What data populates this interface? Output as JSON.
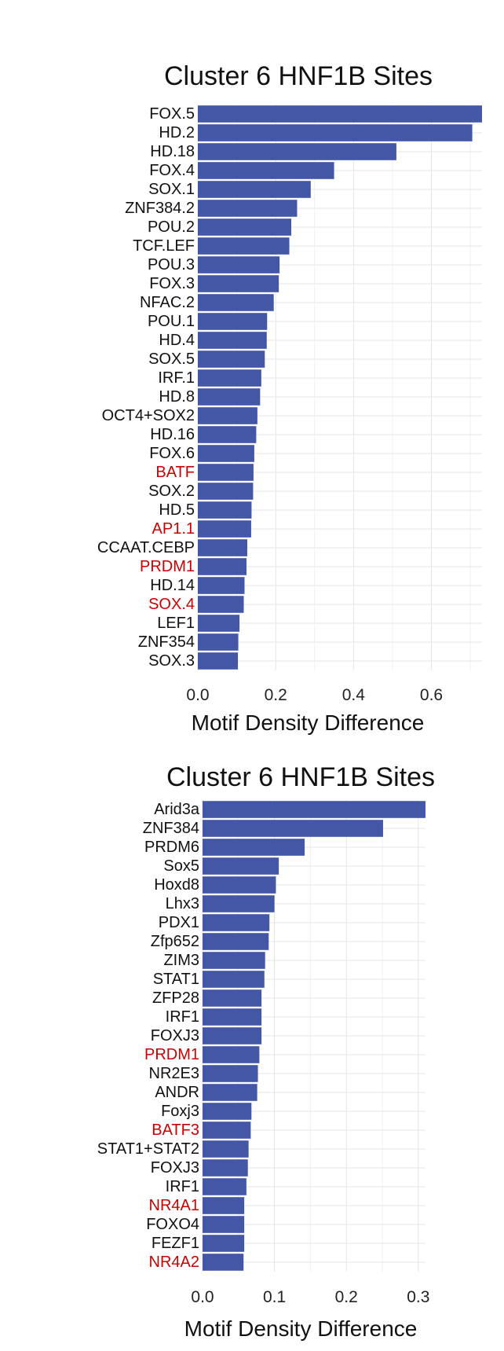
{
  "chart_data": [
    {
      "type": "bar",
      "orientation": "horizontal",
      "title": "Cluster 6 HNF1B Sites",
      "xlabel": "Motif Density Difference",
      "ylabel": "",
      "xlim": [
        0,
        0.73
      ],
      "xticks": [
        "0.0",
        "0.2",
        "0.4",
        "0.6"
      ],
      "xtick_values": [
        0.0,
        0.2,
        0.4,
        0.6
      ],
      "bar_color": "#4357a6",
      "highlight_color": "#cc0000",
      "grid": true,
      "categories": [
        "FOX.5",
        "HD.2",
        "HD.18",
        "FOX.4",
        "SOX.1",
        "ZNF384.2",
        "POU.2",
        "TCF.LEF",
        "POU.3",
        "FOX.3",
        "NFAC.2",
        "POU.1",
        "HD.4",
        "SOX.5",
        "IRF.1",
        "HD.8",
        "OCT4+SOX2",
        "HD.16",
        "FOX.6",
        "BATF",
        "SOX.2",
        "HD.5",
        "AP1.1",
        "CCAAT.CEBP",
        "PRDM1",
        "HD.14",
        "SOX.4",
        "LEF1",
        "ZNF354",
        "SOX.3"
      ],
      "values": [
        0.73,
        0.705,
        0.51,
        0.35,
        0.29,
        0.255,
        0.24,
        0.235,
        0.21,
        0.208,
        0.195,
        0.178,
        0.177,
        0.172,
        0.163,
        0.16,
        0.153,
        0.15,
        0.145,
        0.143,
        0.142,
        0.138,
        0.137,
        0.127,
        0.125,
        0.12,
        0.118,
        0.107,
        0.104,
        0.103
      ],
      "highlighted": [
        "BATF",
        "AP1.1",
        "PRDM1",
        "SOX.4"
      ]
    },
    {
      "type": "bar",
      "orientation": "horizontal",
      "title": "Cluster 6 HNF1B Sites",
      "xlabel": "Motif Density Difference",
      "ylabel": "",
      "xlim": [
        0,
        0.31
      ],
      "xticks": [
        "0.0",
        "0.1",
        "0.2",
        "0.3"
      ],
      "xtick_values": [
        0.0,
        0.1,
        0.2,
        0.3
      ],
      "bar_color": "#4357a6",
      "highlight_color": "#cc0000",
      "grid": true,
      "categories": [
        "Arid3a",
        "ZNF384",
        "PRDM6",
        "Sox5",
        "Hoxd8",
        "Lhx3",
        "PDX1",
        "Zfp652",
        "ZIM3",
        "STAT1",
        "ZFP28",
        "IRF1",
        "FOXJ3",
        "PRDM1",
        "NR2E3",
        "ANDR",
        "Foxj3",
        "BATF3",
        "STAT1+STAT2",
        "FOXJ3",
        "IRF1",
        "NR4A1",
        "FOXO4",
        "FEZF1",
        "NR4A2"
      ],
      "values": [
        0.31,
        0.251,
        0.142,
        0.106,
        0.102,
        0.1,
        0.093,
        0.092,
        0.087,
        0.086,
        0.082,
        0.082,
        0.082,
        0.079,
        0.077,
        0.076,
        0.068,
        0.067,
        0.064,
        0.063,
        0.061,
        0.058,
        0.058,
        0.058,
        0.057
      ],
      "highlighted": [
        "PRDM1",
        "BATF3",
        "NR4A1",
        "NR4A2"
      ]
    }
  ]
}
